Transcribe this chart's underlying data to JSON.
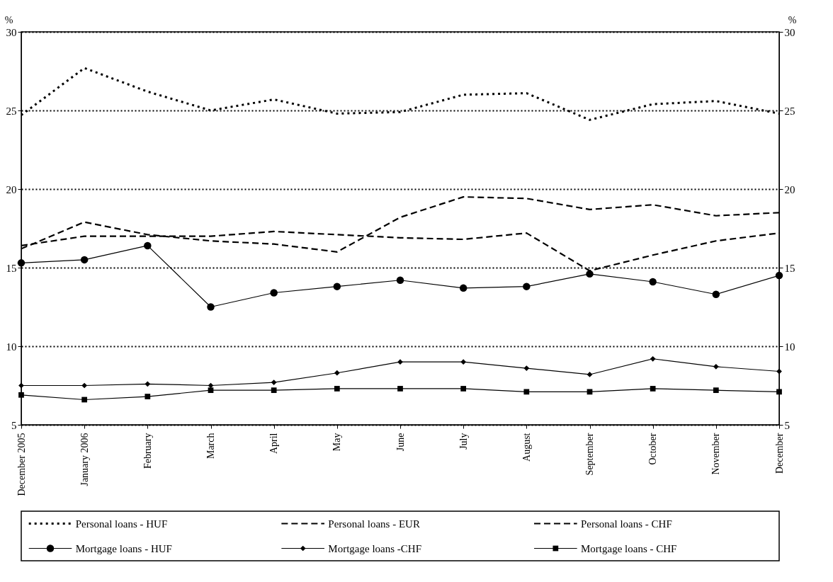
{
  "chart_data": {
    "type": "line",
    "ylabel": "%",
    "y2label": "%",
    "categories": [
      "December 2005",
      "January 2006",
      "February",
      "March",
      "April",
      "May",
      "June",
      "July",
      "August",
      "September",
      "October",
      "November",
      "December"
    ],
    "series": [
      {
        "name": "Personal loans - HUF",
        "color": "#000000",
        "line_style": "dotted",
        "marker": "none",
        "values": [
          24.7,
          27.7,
          26.2,
          25.0,
          25.7,
          24.8,
          24.9,
          26.0,
          26.1,
          24.4,
          25.4,
          25.6,
          24.8
        ]
      },
      {
        "name": "Personal loans - EUR",
        "color": "#000000",
        "line_style": "dashed",
        "marker": "none",
        "values": [
          16.4,
          17.0,
          17.0,
          17.0,
          17.3,
          17.1,
          16.9,
          16.8,
          17.2,
          14.8,
          15.8,
          16.7,
          17.2
        ]
      },
      {
        "name": "Personal loans - CHF",
        "color": "#000000",
        "line_style": "dashed",
        "marker": "none",
        "values": [
          16.2,
          17.9,
          17.1,
          16.7,
          16.5,
          16.0,
          18.2,
          19.5,
          19.4,
          18.7,
          19.0,
          18.3,
          18.5
        ]
      },
      {
        "name": "Mortgage loans - HUF",
        "color": "#000000",
        "line_style": "solid",
        "marker": "circle",
        "values": [
          15.3,
          15.5,
          16.4,
          12.5,
          13.4,
          13.8,
          14.2,
          13.7,
          13.8,
          14.6,
          14.1,
          13.3,
          14.5
        ]
      },
      {
        "name": "Mortgage loans -CHF",
        "color": "#000000",
        "line_style": "solid",
        "marker": "diamond",
        "values": [
          7.5,
          7.5,
          7.6,
          7.5,
          7.7,
          8.3,
          9.0,
          9.0,
          8.6,
          8.2,
          9.2,
          8.7,
          8.4
        ]
      },
      {
        "name": "Mortgage loans - CHF",
        "color": "#000000",
        "line_style": "solid",
        "marker": "square",
        "values": [
          6.9,
          6.6,
          6.8,
          7.2,
          7.2,
          7.3,
          7.3,
          7.3,
          7.1,
          7.1,
          7.3,
          7.2,
          7.1
        ]
      }
    ],
    "ylim": [
      5,
      30
    ],
    "yticks": [
      5,
      10,
      15,
      20,
      25,
      30
    ],
    "y2lim": [
      5,
      30
    ],
    "y2ticks": [
      5,
      10,
      15,
      20,
      25,
      30
    ],
    "grid": "y",
    "legend": "bottom"
  }
}
